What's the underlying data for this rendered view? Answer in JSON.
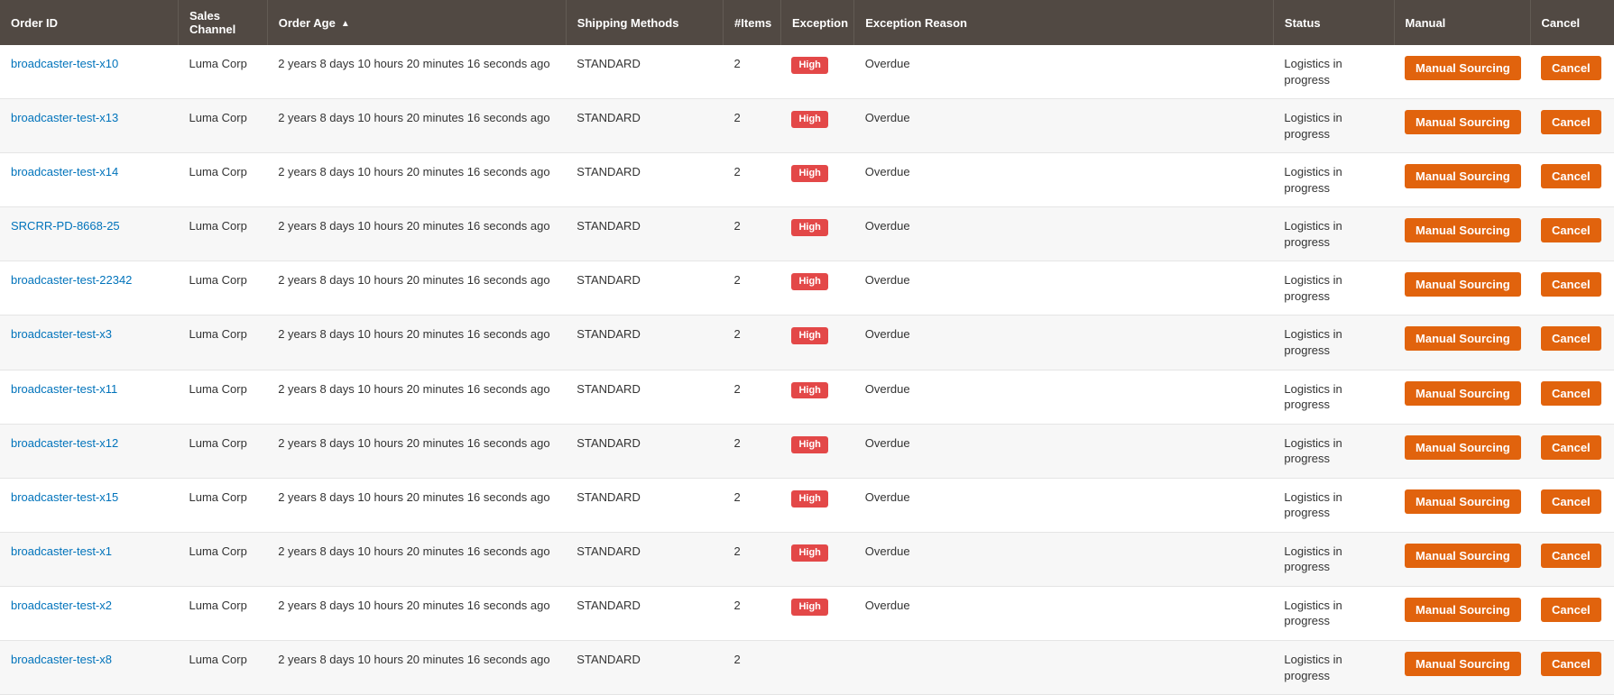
{
  "columns": [
    {
      "key": "order_id",
      "label": "Order ID",
      "sorted": false
    },
    {
      "key": "channel",
      "label": "Sales Channel",
      "sorted": false
    },
    {
      "key": "age",
      "label": "Order Age",
      "sorted": true,
      "dir": "asc"
    },
    {
      "key": "shipping",
      "label": "Shipping Methods",
      "sorted": false
    },
    {
      "key": "items",
      "label": "#Items",
      "sorted": false
    },
    {
      "key": "exception",
      "label": "Exception",
      "sorted": false
    },
    {
      "key": "reason",
      "label": "Exception Reason",
      "sorted": false
    },
    {
      "key": "status",
      "label": "Status",
      "sorted": false
    },
    {
      "key": "manual",
      "label": "Manual",
      "sorted": false
    },
    {
      "key": "cancel",
      "label": "Cancel",
      "sorted": false
    }
  ],
  "cell_text": {
    "channel": "Luma Corp",
    "age": "2 years 8 days 10 hours 20 minutes 16 seconds ago",
    "shipping": "STANDARD",
    "items": "2",
    "exception_badge": "High",
    "reason": "Overdue",
    "status": "Logistics in progress",
    "manual_btn": "Manual Sourcing",
    "cancel_btn": "Cancel"
  },
  "rows": [
    {
      "order_id": "broadcaster-test-x10",
      "has_exception": true
    },
    {
      "order_id": "broadcaster-test-x13",
      "has_exception": true
    },
    {
      "order_id": "broadcaster-test-x14",
      "has_exception": true
    },
    {
      "order_id": "SRCRR-PD-8668-25",
      "has_exception": true
    },
    {
      "order_id": "broadcaster-test-22342",
      "has_exception": true
    },
    {
      "order_id": "broadcaster-test-x3",
      "has_exception": true
    },
    {
      "order_id": "broadcaster-test-x11",
      "has_exception": true
    },
    {
      "order_id": "broadcaster-test-x12",
      "has_exception": true
    },
    {
      "order_id": "broadcaster-test-x15",
      "has_exception": true
    },
    {
      "order_id": "broadcaster-test-x1",
      "has_exception": true
    },
    {
      "order_id": "broadcaster-test-x2",
      "has_exception": true
    },
    {
      "order_id": "broadcaster-test-x8",
      "has_exception": false
    }
  ],
  "colors": {
    "header_bg": "#514943",
    "link": "#0073bb",
    "badge_bg": "#e34848",
    "btn_bg": "#e1630d",
    "row_alt_bg": "#f7f7f7",
    "border": "#e5e5e5"
  }
}
